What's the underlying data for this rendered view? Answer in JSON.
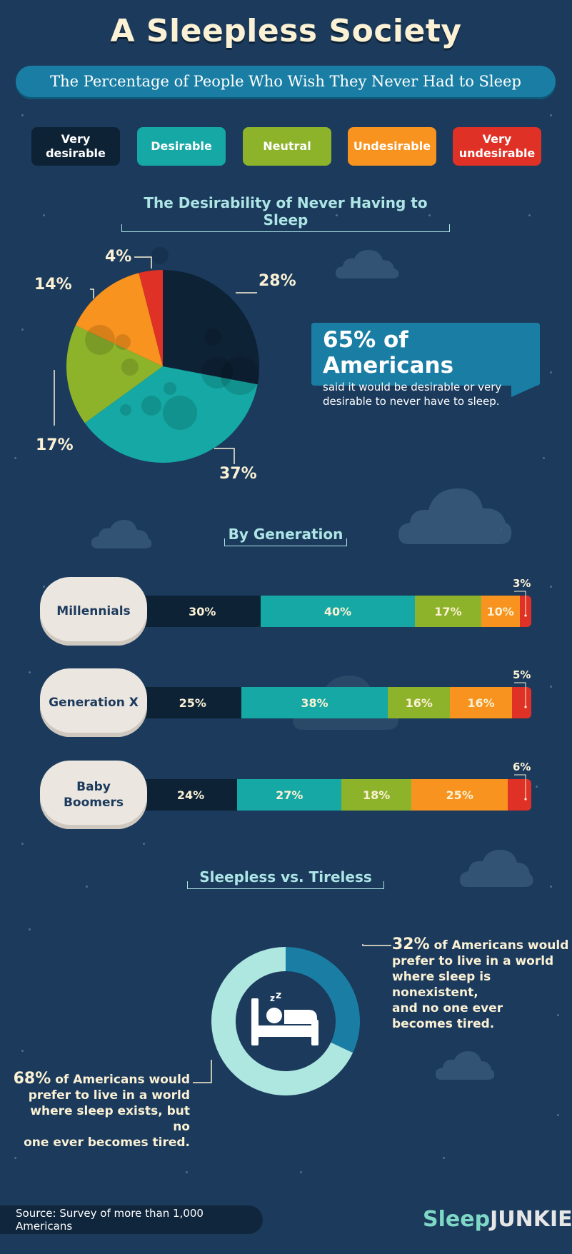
{
  "title": "A Sleepless Society",
  "subtitle": "The Percentage of People Who Wish They Never Had to Sleep",
  "legend": [
    {
      "line1": "Very",
      "line2": "desirable",
      "color": "#0e2236"
    },
    {
      "line1": "Desirable",
      "line2": "",
      "color": "#15a8a4"
    },
    {
      "line1": "Neutral",
      "line2": "",
      "color": "#8db32b"
    },
    {
      "line1": "Undesirable",
      "line2": "",
      "color": "#f7931e"
    },
    {
      "line1": "Very",
      "line2": "undesirable",
      "color": "#e03126"
    }
  ],
  "colors": {
    "very_desirable": "#0e2236",
    "desirable": "#15a8a4",
    "neutral": "#8db32b",
    "undesirable": "#f7931e",
    "very_undesirable": "#e03126",
    "background": "#1b3a5c",
    "accent_blue": "#1a7ea4",
    "donut_light": "#aee6e0"
  },
  "pie_section": {
    "title": "The Desirability of Never Having to Sleep",
    "callout_big": "65% of Americans",
    "callout_line1": "said it would be desirable or very",
    "callout_line2": "desirable to never have to sleep."
  },
  "generation_section": {
    "title": "By Generation"
  },
  "donut_section": {
    "title": "Sleepless vs. Tireless",
    "right_pct": "32%",
    "right_lines": [
      " of Americans would",
      "prefer to live in a world",
      "where sleep is nonexistent,",
      "and no one ever",
      "becomes tired."
    ],
    "left_pct": "68%",
    "left_lines": [
      " of Americans would",
      "prefer to live in a world",
      "where sleep exists, but no",
      "one ever becomes tired."
    ],
    "icon": "bed-sleep-icon"
  },
  "source": "Source: Survey of more than 1,000 Americans",
  "logo": "SleepJUNKIE",
  "chart_data": [
    {
      "type": "pie",
      "title": "The Desirability of Never Having to Sleep",
      "categories": [
        "Very desirable",
        "Desirable",
        "Neutral",
        "Undesirable",
        "Very undesirable"
      ],
      "values": [
        28,
        37,
        17,
        14,
        4
      ],
      "labels": [
        "28%",
        "37%",
        "17%",
        "14%",
        "4%"
      ]
    },
    {
      "type": "bar",
      "title": "By Generation",
      "stacked": true,
      "orientation": "horizontal",
      "categories": [
        "Millennials",
        "Generation X",
        "Baby Boomers"
      ],
      "category_lines": [
        [
          "Millennials"
        ],
        [
          "Generation X"
        ],
        [
          "Baby",
          "Boomers"
        ]
      ],
      "series": [
        {
          "name": "Very desirable",
          "values": [
            30,
            25,
            24
          ]
        },
        {
          "name": "Desirable",
          "values": [
            40,
            38,
            27
          ]
        },
        {
          "name": "Neutral",
          "values": [
            17,
            16,
            18
          ]
        },
        {
          "name": "Undesirable",
          "values": [
            10,
            16,
            25
          ]
        },
        {
          "name": "Very undesirable",
          "values": [
            3,
            5,
            6
          ]
        }
      ]
    },
    {
      "type": "pie",
      "title": "Sleepless vs. Tireless",
      "donut": true,
      "categories": [
        "Sleep is nonexistent",
        "Sleep exists, no one tired"
      ],
      "values": [
        32,
        68
      ]
    }
  ]
}
